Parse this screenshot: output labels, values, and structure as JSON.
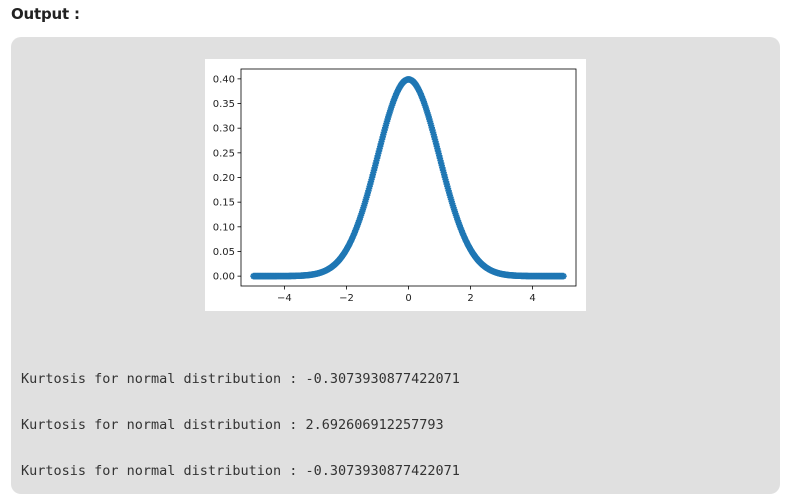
{
  "heading": "Output :",
  "chart_data": {
    "type": "scatter",
    "marker": "*",
    "color": "#1f77b4",
    "title": "",
    "xlabel": "",
    "ylabel": "",
    "xlim": [
      -5.4,
      5.4
    ],
    "ylim": [
      -0.02,
      0.42
    ],
    "x_range": [
      -5,
      5
    ],
    "function": "normal pdf (mean 0, sd 1)",
    "xticks": [
      -4,
      -2,
      0,
      2,
      4
    ],
    "xtick_labels": [
      "−4",
      "−2",
      "0",
      "2",
      "4"
    ],
    "yticks": [
      0.0,
      0.05,
      0.1,
      0.15,
      0.2,
      0.25,
      0.3,
      0.35,
      0.4
    ],
    "ytick_labels": [
      "0.00",
      "0.05",
      "0.10",
      "0.15",
      "0.20",
      "0.25",
      "0.30",
      "0.35",
      "0.40"
    ],
    "grid": false,
    "legend": false
  },
  "output_lines": [
    "Kurtosis for normal distribution : -0.3073930877422071",
    "Kurtosis for normal distribution : 2.692606912257793",
    "Kurtosis for normal distribution : -0.3073930877422071"
  ]
}
